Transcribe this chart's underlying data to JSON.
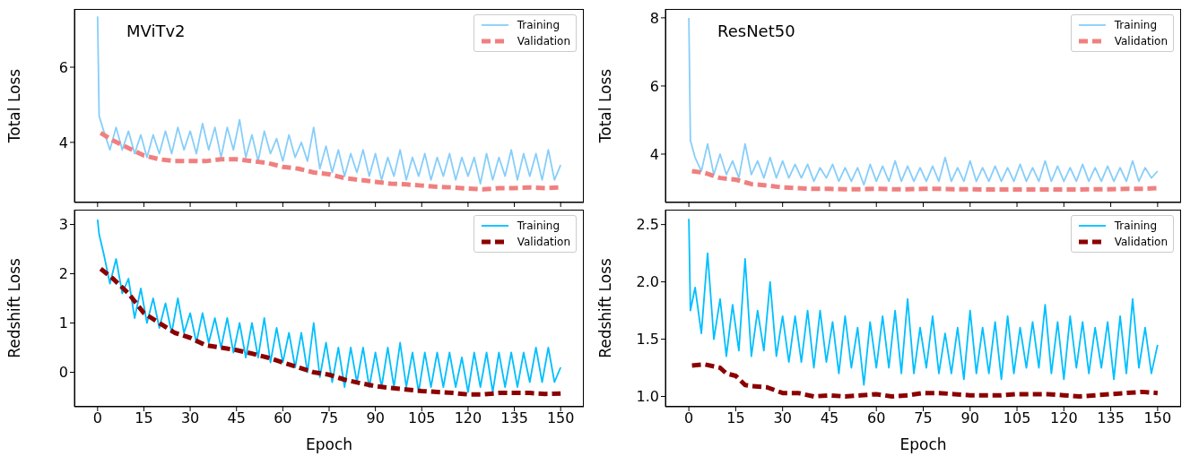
{
  "chart_data": [
    {
      "type": "line",
      "title": "MViTv2",
      "ylabel": "Total Loss",
      "xlim": [
        -7.5,
        157.5
      ],
      "xticks": [
        0,
        15,
        30,
        45,
        60,
        75,
        90,
        105,
        120,
        135,
        150
      ],
      "ylim": [
        2.4,
        7.55
      ],
      "yticks": [
        4,
        6
      ],
      "tick_labels": "y",
      "legend": "top right",
      "series": [
        {
          "name": "Training",
          "color": "#87cefa",
          "line_style": "solid",
          "x": [
            0,
            0.5,
            2,
            4,
            6,
            8,
            10,
            12,
            14,
            16,
            18,
            20,
            22,
            24,
            26,
            28,
            30,
            32,
            34,
            36,
            38,
            40,
            42,
            44,
            46,
            48,
            50,
            52,
            54,
            56,
            58,
            60,
            62,
            64,
            66,
            68,
            70,
            72,
            74,
            76,
            78,
            80,
            82,
            84,
            86,
            88,
            90,
            92,
            94,
            96,
            98,
            100,
            102,
            104,
            106,
            108,
            110,
            112,
            114,
            116,
            118,
            120,
            122,
            124,
            126,
            128,
            130,
            132,
            134,
            136,
            138,
            140,
            142,
            144,
            146,
            148,
            150
          ],
          "values": [
            7.35,
            4.7,
            4.3,
            3.8,
            4.4,
            3.8,
            4.3,
            3.7,
            4.2,
            3.6,
            4.2,
            3.7,
            4.3,
            3.7,
            4.4,
            3.8,
            4.3,
            3.7,
            4.5,
            3.8,
            4.4,
            3.6,
            4.4,
            3.8,
            4.6,
            3.6,
            4.2,
            3.5,
            4.3,
            3.7,
            4.1,
            3.5,
            4.2,
            3.6,
            4.0,
            3.5,
            4.4,
            3.3,
            3.9,
            3.2,
            3.8,
            3.1,
            3.7,
            3.2,
            3.8,
            3.1,
            3.7,
            3.0,
            3.6,
            3.1,
            3.8,
            3.0,
            3.6,
            3.1,
            3.7,
            3.0,
            3.6,
            3.1,
            3.7,
            3.0,
            3.6,
            3.1,
            3.6,
            2.9,
            3.7,
            3.0,
            3.6,
            3.1,
            3.8,
            3.0,
            3.7,
            3.1,
            3.7,
            3.0,
            3.8,
            3.0,
            3.4
          ]
        },
        {
          "name": "Validation",
          "color": "#f08080",
          "line_style": "dashed",
          "x": [
            1,
            5,
            10,
            15,
            20,
            25,
            30,
            35,
            40,
            45,
            50,
            55,
            60,
            65,
            70,
            75,
            80,
            85,
            90,
            95,
            100,
            105,
            110,
            115,
            120,
            125,
            130,
            135,
            140,
            145,
            150
          ],
          "values": [
            4.25,
            4.05,
            3.85,
            3.65,
            3.55,
            3.5,
            3.5,
            3.5,
            3.55,
            3.55,
            3.5,
            3.45,
            3.35,
            3.3,
            3.2,
            3.15,
            3.05,
            3.0,
            2.95,
            2.9,
            2.88,
            2.85,
            2.82,
            2.8,
            2.77,
            2.75,
            2.78,
            2.78,
            2.8,
            2.78,
            2.8
          ]
        }
      ]
    },
    {
      "type": "line",
      "title": "ResNet50",
      "ylabel": "Total Loss",
      "xlim": [
        -7.5,
        157.5
      ],
      "xticks": [
        0,
        15,
        30,
        45,
        60,
        75,
        90,
        105,
        120,
        135,
        150
      ],
      "ylim": [
        2.58,
        8.26
      ],
      "yticks": [
        4,
        6,
        8
      ],
      "tick_labels": "y",
      "legend": "top right",
      "series": [
        {
          "name": "Training",
          "color": "#87cefa",
          "line_style": "solid",
          "x": [
            0,
            0.5,
            2,
            4,
            6,
            8,
            10,
            12,
            14,
            16,
            18,
            20,
            22,
            24,
            26,
            28,
            30,
            32,
            34,
            36,
            38,
            40,
            42,
            44,
            46,
            48,
            50,
            52,
            54,
            56,
            58,
            60,
            62,
            64,
            66,
            68,
            70,
            72,
            74,
            76,
            78,
            80,
            82,
            84,
            86,
            88,
            90,
            92,
            94,
            96,
            98,
            100,
            102,
            104,
            106,
            108,
            110,
            112,
            114,
            116,
            118,
            120,
            122,
            124,
            126,
            128,
            130,
            132,
            134,
            136,
            138,
            140,
            142,
            144,
            146,
            148,
            150
          ],
          "values": [
            8.0,
            4.4,
            3.9,
            3.5,
            4.3,
            3.4,
            4.0,
            3.4,
            3.8,
            3.3,
            4.3,
            3.4,
            3.8,
            3.3,
            3.9,
            3.3,
            3.8,
            3.3,
            3.7,
            3.3,
            3.7,
            3.2,
            3.6,
            3.3,
            3.7,
            3.2,
            3.6,
            3.2,
            3.6,
            3.1,
            3.7,
            3.2,
            3.65,
            3.2,
            3.8,
            3.2,
            3.65,
            3.2,
            3.6,
            3.2,
            3.65,
            3.2,
            3.9,
            3.2,
            3.6,
            3.2,
            3.8,
            3.2,
            3.6,
            3.2,
            3.65,
            3.2,
            3.6,
            3.2,
            3.7,
            3.2,
            3.6,
            3.2,
            3.8,
            3.2,
            3.65,
            3.2,
            3.6,
            3.2,
            3.7,
            3.2,
            3.6,
            3.2,
            3.65,
            3.2,
            3.6,
            3.2,
            3.8,
            3.2,
            3.6,
            3.3,
            3.5
          ]
        },
        {
          "name": "Validation",
          "color": "#f08080",
          "line_style": "dashed",
          "x": [
            1,
            5,
            10,
            15,
            20,
            25,
            30,
            35,
            40,
            45,
            50,
            55,
            60,
            65,
            70,
            75,
            80,
            85,
            90,
            95,
            100,
            105,
            110,
            115,
            120,
            125,
            130,
            135,
            140,
            145,
            150
          ],
          "values": [
            3.5,
            3.45,
            3.3,
            3.25,
            3.12,
            3.08,
            3.02,
            3.0,
            2.98,
            2.98,
            2.97,
            2.97,
            2.98,
            2.97,
            2.97,
            2.98,
            2.98,
            2.97,
            2.97,
            2.96,
            2.96,
            2.96,
            2.96,
            2.96,
            2.96,
            2.96,
            2.97,
            2.97,
            2.98,
            2.98,
            3.0
          ]
        }
      ]
    },
    {
      "type": "line",
      "ylabel": "Redshift Loss",
      "xlabel": "Epoch",
      "xlim": [
        -7.5,
        157.5
      ],
      "xticks": [
        0,
        15,
        30,
        45,
        60,
        75,
        90,
        105,
        120,
        135,
        150
      ],
      "ylim": [
        -0.7,
        3.3
      ],
      "yticks": [
        0,
        1,
        2,
        3
      ],
      "legend": "top right",
      "series": [
        {
          "name": "Training",
          "color": "#00bfff",
          "line_style": "solid",
          "x": [
            0,
            0.5,
            2,
            4,
            6,
            8,
            10,
            12,
            14,
            16,
            18,
            20,
            22,
            24,
            26,
            28,
            30,
            32,
            34,
            36,
            38,
            40,
            42,
            44,
            46,
            48,
            50,
            52,
            54,
            56,
            58,
            60,
            62,
            64,
            66,
            68,
            70,
            72,
            74,
            76,
            78,
            80,
            82,
            84,
            86,
            88,
            90,
            92,
            94,
            96,
            98,
            100,
            102,
            104,
            106,
            108,
            110,
            112,
            114,
            116,
            118,
            120,
            122,
            124,
            126,
            128,
            130,
            132,
            134,
            136,
            138,
            140,
            142,
            144,
            146,
            148,
            150
          ],
          "values": [
            3.1,
            2.8,
            2.4,
            1.8,
            2.3,
            1.6,
            1.9,
            1.1,
            1.7,
            1.0,
            1.5,
            0.9,
            1.4,
            0.8,
            1.5,
            0.8,
            1.2,
            0.6,
            1.2,
            0.6,
            1.1,
            0.5,
            1.1,
            0.4,
            1.0,
            0.3,
            1.0,
            0.3,
            1.1,
            0.2,
            0.9,
            0.2,
            0.8,
            0.1,
            0.8,
            0.0,
            1.0,
            -0.1,
            0.6,
            -0.2,
            0.5,
            -0.3,
            0.5,
            -0.2,
            0.5,
            -0.3,
            0.4,
            -0.3,
            0.5,
            -0.3,
            0.6,
            -0.3,
            0.4,
            -0.4,
            0.4,
            -0.3,
            0.4,
            -0.3,
            0.4,
            -0.3,
            0.3,
            -0.4,
            0.4,
            -0.3,
            0.4,
            -0.4,
            0.4,
            -0.3,
            0.4,
            -0.3,
            0.4,
            -0.2,
            0.5,
            -0.2,
            0.5,
            -0.2,
            0.1
          ]
        },
        {
          "name": "Validation",
          "color": "#8b0000",
          "line_style": "dashed",
          "x": [
            1,
            5,
            10,
            15,
            20,
            25,
            30,
            35,
            40,
            45,
            50,
            55,
            60,
            65,
            70,
            75,
            80,
            85,
            90,
            95,
            100,
            105,
            110,
            115,
            120,
            125,
            130,
            135,
            140,
            145,
            150
          ],
          "values": [
            2.1,
            1.9,
            1.6,
            1.2,
            1.0,
            0.8,
            0.7,
            0.55,
            0.5,
            0.45,
            0.38,
            0.3,
            0.2,
            0.1,
            0.0,
            -0.05,
            -0.15,
            -0.22,
            -0.28,
            -0.32,
            -0.35,
            -0.38,
            -0.4,
            -0.42,
            -0.45,
            -0.45,
            -0.42,
            -0.42,
            -0.42,
            -0.44,
            -0.43
          ]
        }
      ]
    },
    {
      "type": "line",
      "ylabel": "Redshift Loss",
      "xlabel": "Epoch",
      "xlim": [
        -7.5,
        157.5
      ],
      "xticks": [
        0,
        15,
        30,
        45,
        60,
        75,
        90,
        105,
        120,
        135,
        150
      ],
      "ylim": [
        0.91,
        2.63
      ],
      "yticks": [
        {
          "value": 1,
          "label": "1.0"
        },
        1.5,
        {
          "value": 2,
          "label": "2.0"
        },
        2.5
      ],
      "legend": "top right",
      "series": [
        {
          "name": "Training",
          "color": "#00bfff",
          "line_style": "solid",
          "x": [
            0,
            0.5,
            2,
            4,
            6,
            8,
            10,
            12,
            14,
            16,
            18,
            20,
            22,
            24,
            26,
            28,
            30,
            32,
            34,
            36,
            38,
            40,
            42,
            44,
            46,
            48,
            50,
            52,
            54,
            56,
            58,
            60,
            62,
            64,
            66,
            68,
            70,
            72,
            74,
            76,
            78,
            80,
            82,
            84,
            86,
            88,
            90,
            92,
            94,
            96,
            98,
            100,
            102,
            104,
            106,
            108,
            110,
            112,
            114,
            116,
            118,
            120,
            122,
            124,
            126,
            128,
            130,
            132,
            134,
            136,
            138,
            140,
            142,
            144,
            146,
            148,
            150
          ],
          "values": [
            2.55,
            1.75,
            1.95,
            1.55,
            2.25,
            1.5,
            1.85,
            1.35,
            1.8,
            1.4,
            2.2,
            1.35,
            1.75,
            1.4,
            2.0,
            1.35,
            1.7,
            1.3,
            1.7,
            1.3,
            1.75,
            1.25,
            1.75,
            1.3,
            1.65,
            1.2,
            1.7,
            1.25,
            1.6,
            1.1,
            1.65,
            1.25,
            1.7,
            1.25,
            1.75,
            1.2,
            1.85,
            1.2,
            1.6,
            1.25,
            1.7,
            1.2,
            1.55,
            1.2,
            1.6,
            1.15,
            1.75,
            1.2,
            1.6,
            1.2,
            1.65,
            1.15,
            1.7,
            1.2,
            1.6,
            1.25,
            1.65,
            1.25,
            1.8,
            1.2,
            1.65,
            1.15,
            1.7,
            1.25,
            1.65,
            1.2,
            1.6,
            1.25,
            1.65,
            1.15,
            1.7,
            1.2,
            1.85,
            1.25,
            1.6,
            1.2,
            1.45
          ]
        },
        {
          "name": "Validation",
          "color": "#8b0000",
          "line_style": "dashed",
          "x": [
            1,
            5,
            10,
            12,
            15,
            18,
            20,
            25,
            30,
            35,
            40,
            45,
            50,
            55,
            60,
            65,
            70,
            75,
            80,
            85,
            90,
            95,
            100,
            105,
            110,
            115,
            120,
            125,
            130,
            135,
            140,
            145,
            150
          ],
          "values": [
            1.27,
            1.28,
            1.25,
            1.2,
            1.18,
            1.1,
            1.09,
            1.08,
            1.03,
            1.03,
            1.0,
            1.01,
            1.0,
            1.01,
            1.02,
            1.0,
            1.01,
            1.03,
            1.03,
            1.02,
            1.01,
            1.01,
            1.01,
            1.02,
            1.02,
            1.02,
            1.01,
            1.0,
            1.01,
            1.02,
            1.03,
            1.04,
            1.03
          ]
        }
      ]
    }
  ]
}
